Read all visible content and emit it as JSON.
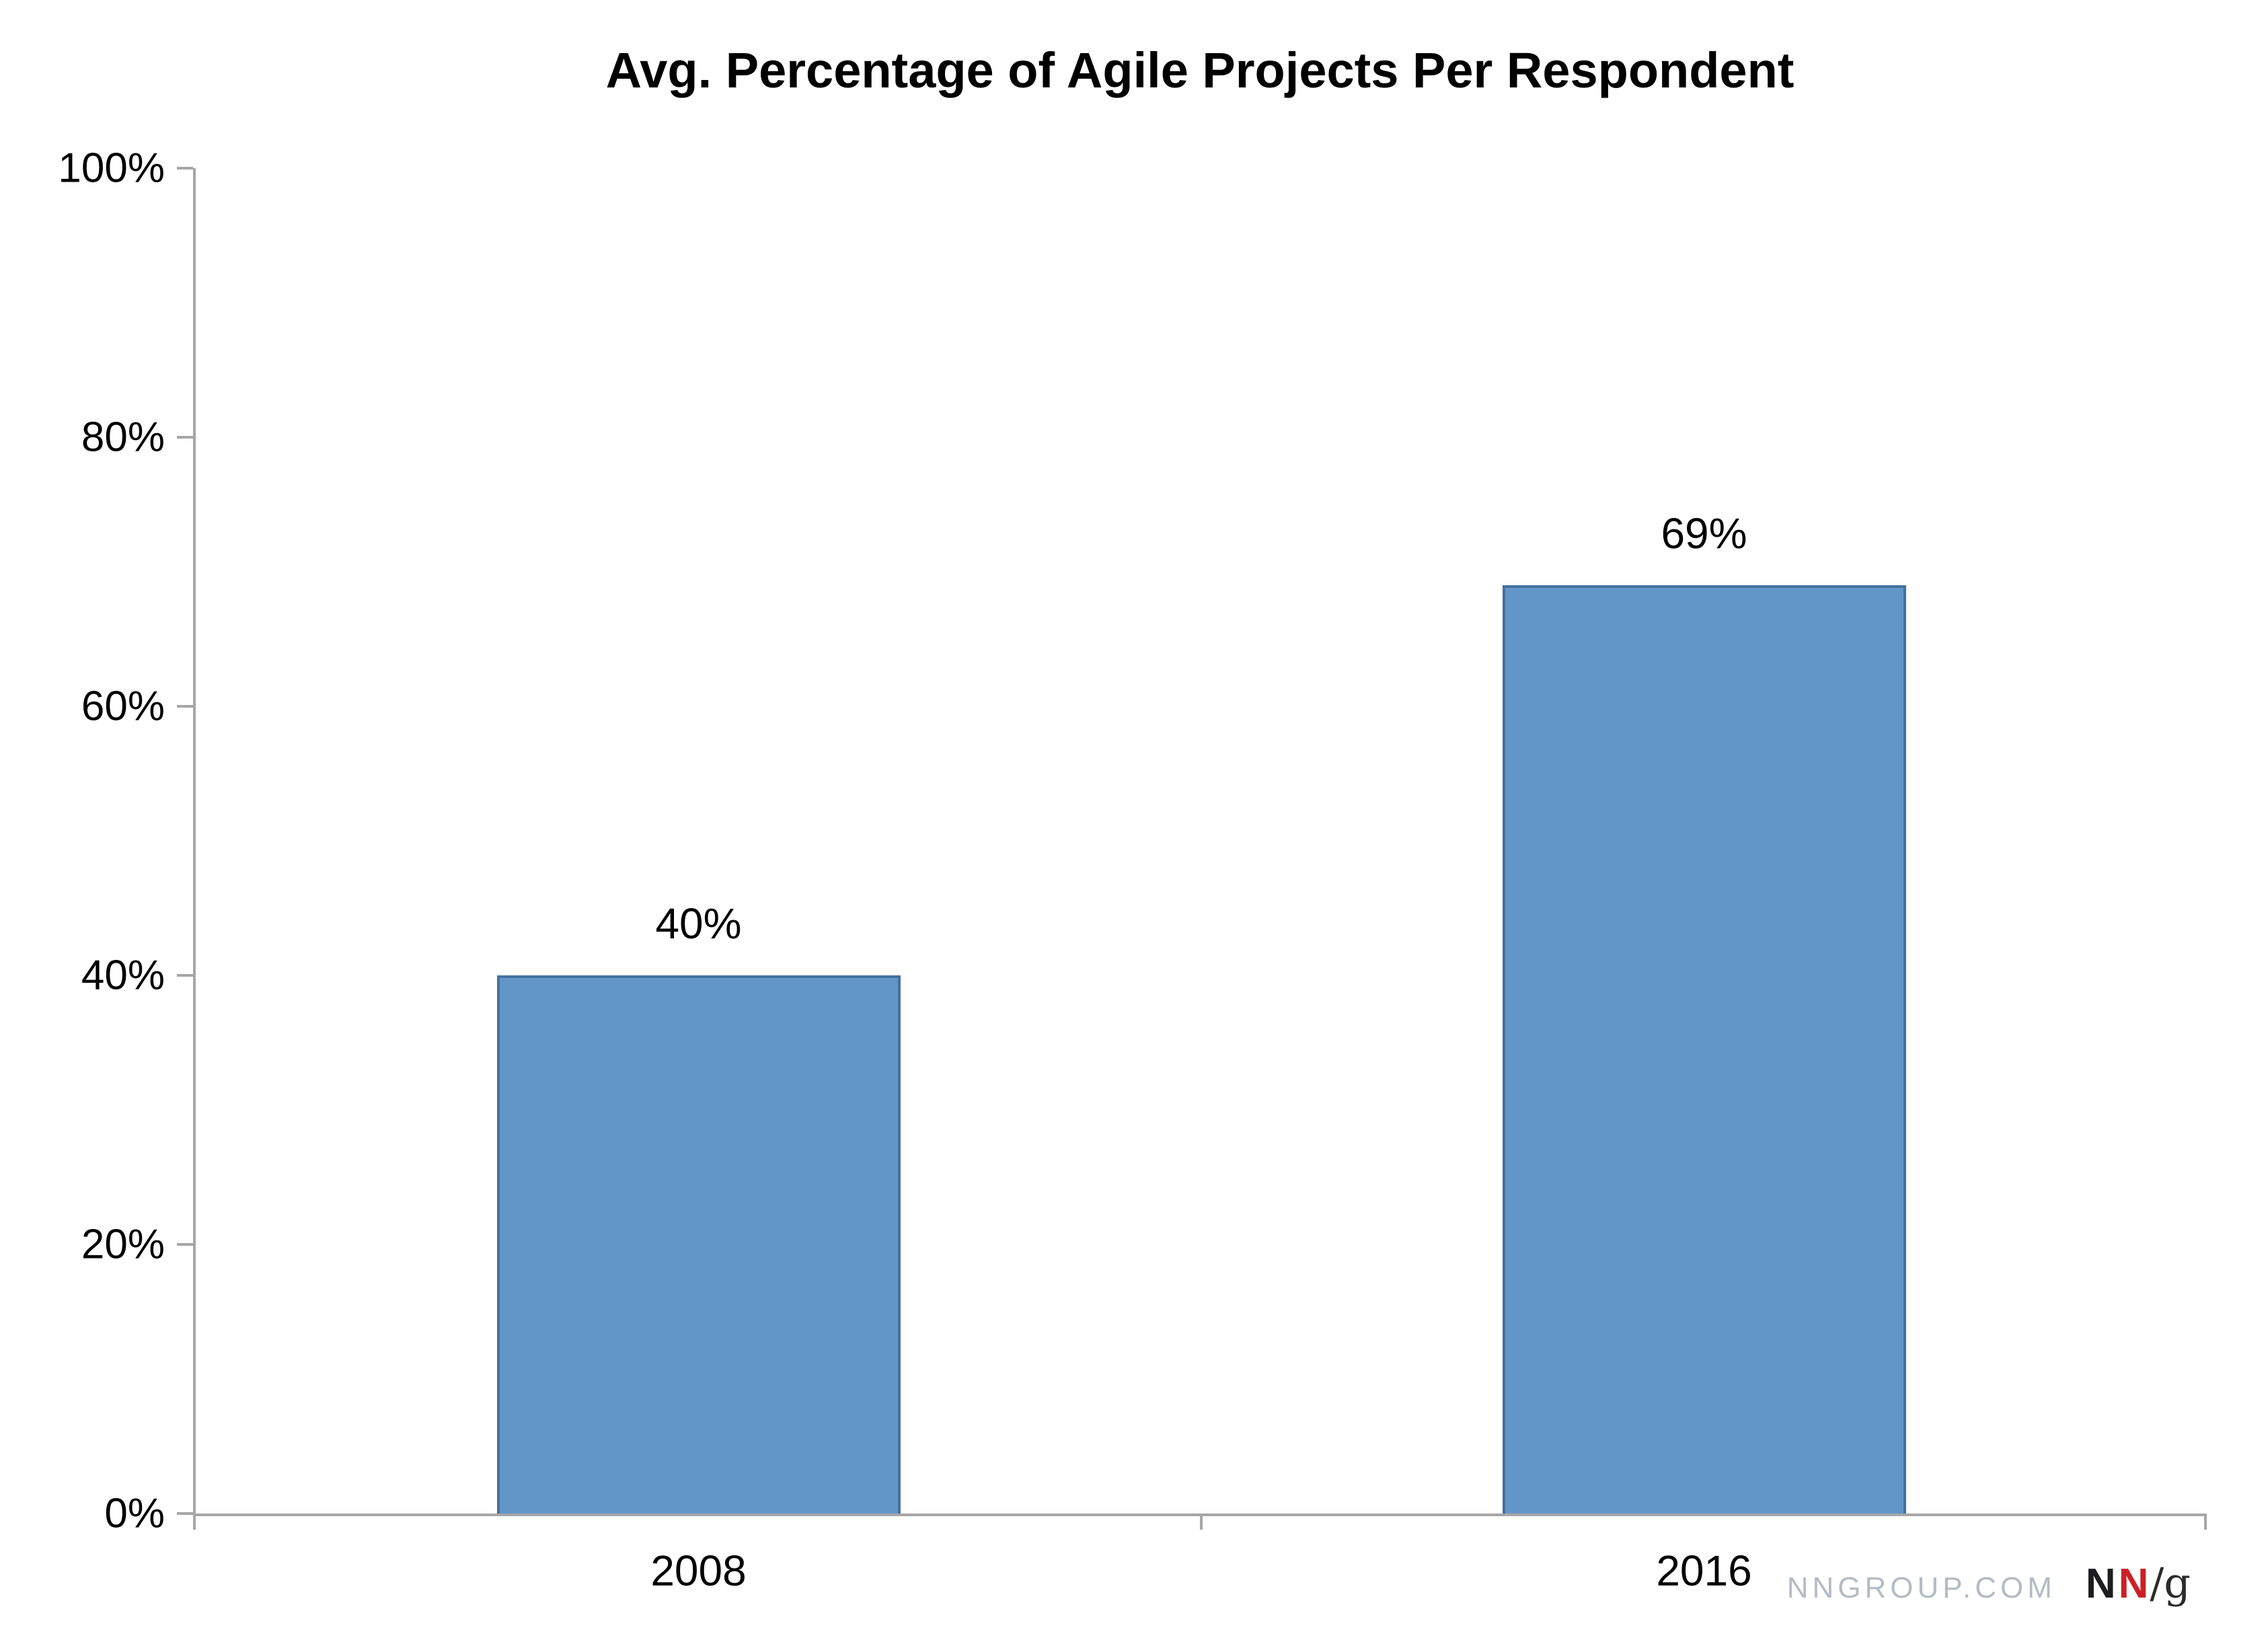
{
  "chart_data": {
    "type": "bar",
    "title": "Avg. Percentage of Agile Projects Per Respondent",
    "categories": [
      "2008",
      "2016"
    ],
    "values": [
      40,
      69
    ],
    "value_labels": [
      "40%",
      "69%"
    ],
    "xlabel": "",
    "ylabel": "",
    "ylim": [
      0,
      100
    ],
    "yticks": [
      {
        "value": 0,
        "label": "0%"
      },
      {
        "value": 20,
        "label": "20%"
      },
      {
        "value": 40,
        "label": "40%"
      },
      {
        "value": 60,
        "label": "60%"
      },
      {
        "value": 80,
        "label": "80%"
      },
      {
        "value": 100,
        "label": "100%"
      }
    ],
    "grid": false,
    "legend": "none",
    "colors": {
      "bar_fill": "#6396C8",
      "bar_border": "#44719E",
      "axis": "#A6A6A6",
      "text": "#000000"
    }
  },
  "branding": {
    "website": "NNGROUP.COM",
    "logo_n1": "N",
    "logo_n2": "N",
    "logo_suffix": "/g",
    "colors": {
      "website": "#B2BCC6",
      "n1": "#1D1D20",
      "n2": "#CB2026",
      "suffix": "#2B2B2B"
    }
  }
}
